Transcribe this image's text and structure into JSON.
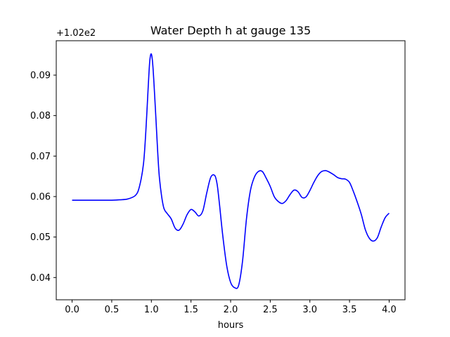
{
  "chart_data": {
    "type": "line",
    "title": "Water Depth h at gauge 135",
    "xlabel": "hours",
    "ylabel": "",
    "offset_text": "+1.02e2",
    "xlim": [
      -0.2,
      4.2
    ],
    "ylim": [
      0.0345,
      0.0985
    ],
    "xticks": [
      0.0,
      0.5,
      1.0,
      1.5,
      2.0,
      2.5,
      3.0,
      3.5,
      4.0
    ],
    "xtick_labels": [
      "0.0",
      "0.5",
      "1.0",
      "1.5",
      "2.0",
      "2.5",
      "3.0",
      "3.5",
      "4.0"
    ],
    "yticks": [
      0.04,
      0.05,
      0.06,
      0.07,
      0.08,
      0.09
    ],
    "ytick_labels": [
      "0.04",
      "0.05",
      "0.06",
      "0.07",
      "0.08",
      "0.09"
    ],
    "grid": false,
    "series": [
      {
        "color": "#0000ff",
        "x": [
          0.0,
          0.2,
          0.4,
          0.5,
          0.6,
          0.7,
          0.8,
          0.85,
          0.9,
          0.93,
          0.96,
          0.98,
          1.0,
          1.02,
          1.05,
          1.08,
          1.1,
          1.13,
          1.16,
          1.2,
          1.25,
          1.3,
          1.35,
          1.4,
          1.45,
          1.5,
          1.55,
          1.6,
          1.65,
          1.7,
          1.75,
          1.8,
          1.83,
          1.86,
          1.9,
          1.95,
          2.0,
          2.05,
          2.1,
          2.15,
          2.2,
          2.25,
          2.3,
          2.35,
          2.4,
          2.45,
          2.5,
          2.55,
          2.6,
          2.65,
          2.7,
          2.75,
          2.8,
          2.85,
          2.9,
          2.95,
          3.0,
          3.05,
          3.1,
          3.15,
          3.2,
          3.25,
          3.3,
          3.35,
          3.4,
          3.45,
          3.5,
          3.55,
          3.6,
          3.65,
          3.7,
          3.75,
          3.8,
          3.85,
          3.9,
          3.95,
          4.0
        ],
        "y": [
          0.0591,
          0.0591,
          0.0591,
          0.0591,
          0.0592,
          0.0594,
          0.0603,
          0.0625,
          0.068,
          0.076,
          0.087,
          0.0935,
          0.0952,
          0.092,
          0.082,
          0.071,
          0.065,
          0.06,
          0.057,
          0.0558,
          0.0545,
          0.0522,
          0.0517,
          0.0532,
          0.0555,
          0.0568,
          0.0562,
          0.0552,
          0.0565,
          0.061,
          0.0648,
          0.0652,
          0.063,
          0.058,
          0.0505,
          0.043,
          0.0388,
          0.0375,
          0.038,
          0.044,
          0.0545,
          0.0615,
          0.0648,
          0.0662,
          0.0662,
          0.0645,
          0.0625,
          0.06,
          0.0588,
          0.0583,
          0.059,
          0.0605,
          0.0616,
          0.0612,
          0.0598,
          0.0599,
          0.0615,
          0.0635,
          0.0652,
          0.0662,
          0.0664,
          0.066,
          0.0654,
          0.0647,
          0.0644,
          0.0643,
          0.0635,
          0.0612,
          0.0585,
          0.0555,
          0.0518,
          0.0497,
          0.049,
          0.0498,
          0.0525,
          0.0548,
          0.0559
        ]
      }
    ]
  }
}
